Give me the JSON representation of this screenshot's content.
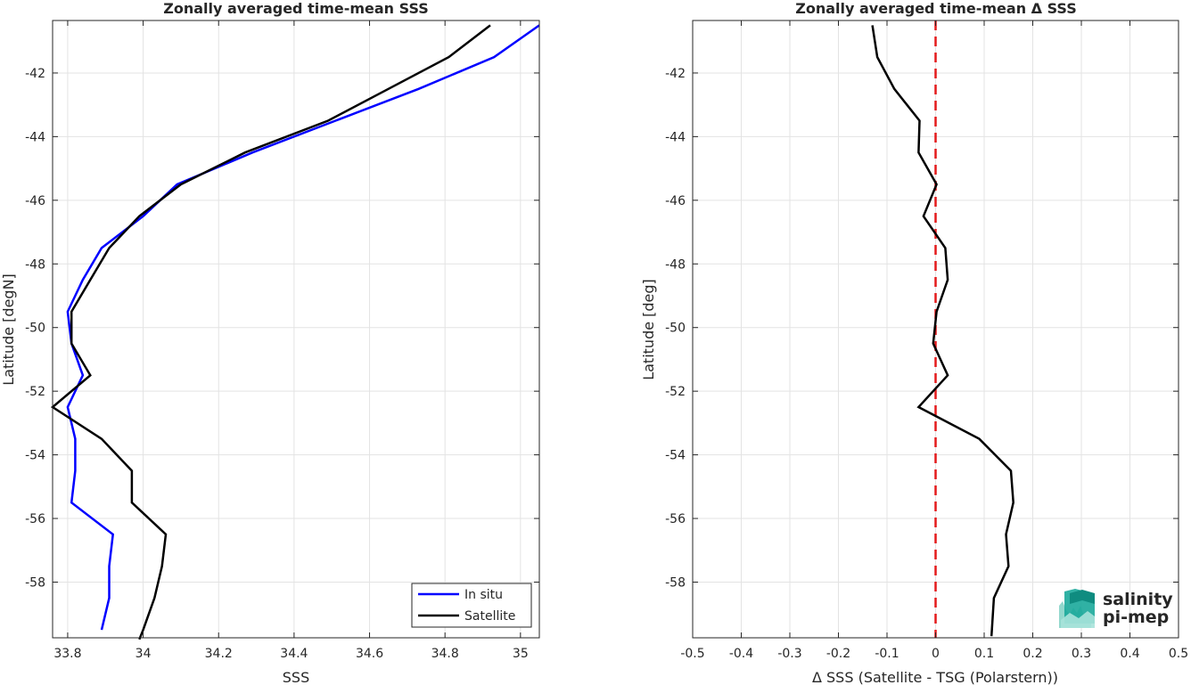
{
  "colors": {
    "in_situ": "#0000ff",
    "satellite": "#000000",
    "zero_line": "#e41a1c",
    "grid": "#e3e3e3",
    "axis": "#262626",
    "logo_teal": "#1aa89a"
  },
  "logo": {
    "line1": "salinity",
    "line2": "pi-mep",
    "icon": "wave-bars-icon"
  },
  "chart_data": [
    {
      "type": "line",
      "title": "Zonally averaged time-mean SSS",
      "xlabel": "SSS",
      "ylabel": "Latitude [degN]",
      "xlim": [
        33.76,
        35.05
      ],
      "ylim": [
        -59.75,
        -40.35
      ],
      "xticks": [
        33.8,
        34,
        34.2,
        34.4,
        34.6,
        34.8,
        35
      ],
      "xtick_labels": [
        "33.8",
        "34",
        "34.2",
        "34.4",
        "34.6",
        "34.8",
        "35"
      ],
      "yticks": [
        -58,
        -56,
        -54,
        -52,
        -50,
        -48,
        -46,
        -44,
        -42
      ],
      "ytick_labels": [
        "-58",
        "-56",
        "-54",
        "-52",
        "-50",
        "-48",
        "-46",
        "-44",
        "-42"
      ],
      "grid": true,
      "legend_position": "bottom-right",
      "series": [
        {
          "name": "In situ",
          "color": "#0000ff",
          "points": [
            [
              33.89,
              -59.5
            ],
            [
              33.91,
              -58.5
            ],
            [
              33.91,
              -57.5
            ],
            [
              33.92,
              -56.5
            ],
            [
              33.81,
              -55.5
            ],
            [
              33.82,
              -54.5
            ],
            [
              33.82,
              -53.5
            ],
            [
              33.8,
              -52.5
            ],
            [
              33.84,
              -51.5
            ],
            [
              33.81,
              -50.5
            ],
            [
              33.8,
              -49.5
            ],
            [
              33.84,
              -48.5
            ],
            [
              33.89,
              -47.5
            ],
            [
              34.0,
              -46.5
            ],
            [
              34.09,
              -45.5
            ],
            [
              34.29,
              -44.5
            ],
            [
              34.51,
              -43.5
            ],
            [
              34.73,
              -42.5
            ],
            [
              34.93,
              -41.5
            ],
            [
              35.05,
              -40.5
            ]
          ]
        },
        {
          "name": "Satellite",
          "color": "#000000",
          "points": [
            [
              33.99,
              -59.8
            ],
            [
              34.0,
              -59.5
            ],
            [
              34.03,
              -58.5
            ],
            [
              34.05,
              -57.5
            ],
            [
              34.06,
              -56.5
            ],
            [
              33.97,
              -55.5
            ],
            [
              33.97,
              -54.5
            ],
            [
              33.89,
              -53.5
            ],
            [
              33.76,
              -52.5
            ],
            [
              33.86,
              -51.5
            ],
            [
              33.81,
              -50.5
            ],
            [
              33.81,
              -49.5
            ],
            [
              33.86,
              -48.5
            ],
            [
              33.91,
              -47.5
            ],
            [
              33.99,
              -46.5
            ],
            [
              34.1,
              -45.5
            ],
            [
              34.27,
              -44.5
            ],
            [
              34.49,
              -43.5
            ],
            [
              34.65,
              -42.5
            ],
            [
              34.81,
              -41.5
            ],
            [
              34.92,
              -40.5
            ]
          ]
        }
      ]
    },
    {
      "type": "line",
      "title": "Zonally averaged time-mean Δ SSS",
      "xlabel": "Δ SSS (Satellite - TSG (Polarstern))",
      "ylabel": "Latitude [deg]",
      "xlim": [
        -0.5,
        0.5
      ],
      "ylim": [
        -59.75,
        -40.35
      ],
      "xticks": [
        -0.5,
        -0.4,
        -0.3,
        -0.2,
        -0.1,
        0,
        0.1,
        0.2,
        0.3,
        0.4,
        0.5
      ],
      "xtick_labels": [
        "-0.5",
        "-0.4",
        "-0.3",
        "-0.2",
        "-0.1",
        "0",
        "0.1",
        "0.2",
        "0.3",
        "0.4",
        "0.5"
      ],
      "yticks": [
        -58,
        -56,
        -54,
        -52,
        -50,
        -48,
        -46,
        -44,
        -42
      ],
      "ytick_labels": [
        "-58",
        "-56",
        "-54",
        "-52",
        "-50",
        "-48",
        "-46",
        "-44",
        "-42"
      ],
      "grid": true,
      "reference_line": {
        "x": 0,
        "style": "dashed",
        "color": "#e41a1c"
      },
      "series": [
        {
          "color": "#000000",
          "points": [
            [
              0.115,
              -59.7
            ],
            [
              0.12,
              -58.5
            ],
            [
              0.15,
              -57.5
            ],
            [
              0.145,
              -56.5
            ],
            [
              0.16,
              -55.5
            ],
            [
              0.155,
              -54.5
            ],
            [
              0.09,
              -53.5
            ],
            [
              -0.035,
              -52.5
            ],
            [
              0.025,
              -51.5
            ],
            [
              -0.005,
              -50.5
            ],
            [
              0.002,
              -49.5
            ],
            [
              0.025,
              -48.5
            ],
            [
              0.02,
              -47.5
            ],
            [
              -0.025,
              -46.5
            ],
            [
              0.002,
              -45.5
            ],
            [
              -0.035,
              -44.5
            ],
            [
              -0.033,
              -43.5
            ],
            [
              -0.085,
              -42.5
            ],
            [
              -0.12,
              -41.5
            ],
            [
              -0.13,
              -40.5
            ]
          ]
        }
      ]
    }
  ]
}
